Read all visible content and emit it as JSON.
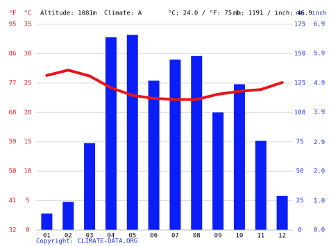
{
  "chart_data": {
    "type": "bar",
    "header": [
      "Altitude: 1081m",
      "Climate: A",
      "°C: 24.0 / °F: 75.1",
      "mm: 1191 / inch: 46.9"
    ],
    "axis_units": {
      "f": "°F",
      "c": "°C",
      "mm": "mm",
      "inch": "inch"
    },
    "copyright": "Copyright: CLIMATE-DATA.ORG",
    "categories": [
      "01",
      "02",
      "03",
      "04",
      "05",
      "06",
      "07",
      "08",
      "09",
      "10",
      "11",
      "12"
    ],
    "series": [
      {
        "type": "bar",
        "axis": "y2",
        "color": "#0a1ef5",
        "values": [
          14,
          24,
          74,
          164,
          166,
          127,
          145,
          148,
          100,
          124,
          76,
          29
        ]
      },
      {
        "type": "line",
        "color": "#e8141c",
        "values": [
          26.3,
          27.2,
          26.2,
          24.2,
          22.9,
          22.4,
          22.2,
          22.2,
          23.1,
          23.6,
          23.9,
          25.1
        ]
      }
    ],
    "ylim": [
      0,
      35
    ],
    "yticks": [
      0,
      5,
      10,
      15,
      20,
      25,
      30,
      35
    ],
    "y_f_lim": [
      32,
      95
    ],
    "y_f_ticks": [
      32,
      41,
      50,
      59,
      68,
      77,
      86,
      95
    ],
    "y2lim": [
      0,
      175
    ],
    "y2ticks": [
      0,
      25,
      50,
      75,
      100,
      125,
      150,
      175
    ],
    "y2_inch_lim": [
      0,
      6.89
    ],
    "y2_inch_ticks": [
      {
        "value": 0,
        "label": "0.0"
      },
      {
        "value": 0.98,
        "label": "1.0"
      },
      {
        "value": 1.97,
        "label": "2.0"
      },
      {
        "value": 2.94,
        "label": "2.9"
      },
      {
        "value": 3.94,
        "label": "3.9"
      },
      {
        "value": 4.92,
        "label": "4.9"
      },
      {
        "value": 5.91,
        "label": "5.9"
      },
      {
        "value": 6.89,
        "label": "6.9"
      }
    ],
    "grid": true
  }
}
